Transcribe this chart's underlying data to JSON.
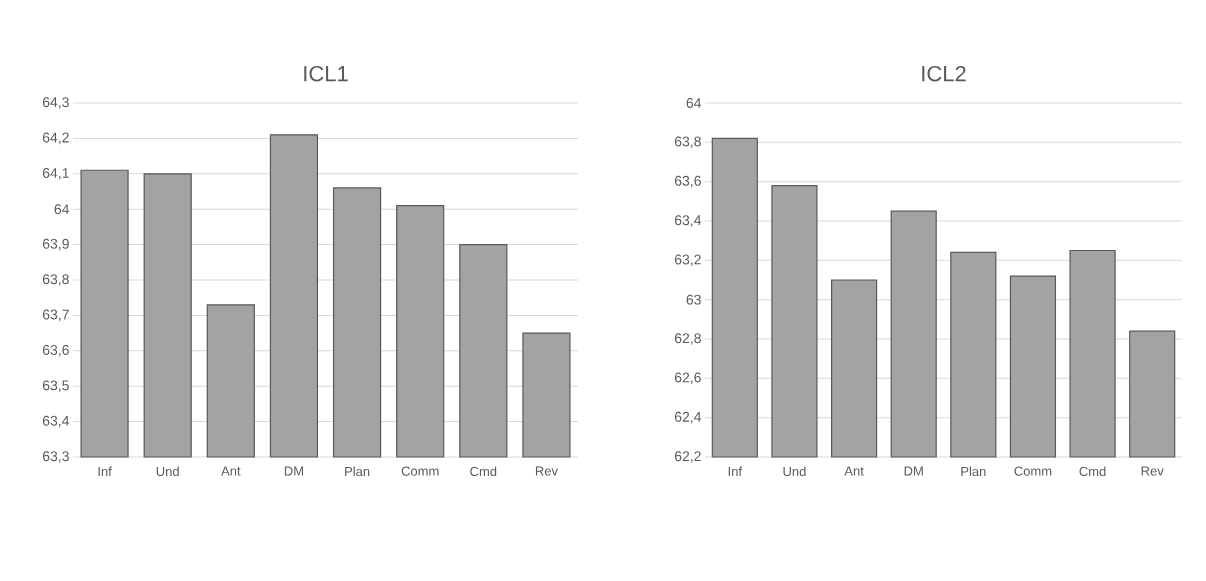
{
  "chart_data": [
    {
      "type": "bar",
      "title": "ICL1",
      "categories": [
        "Inf",
        "Und",
        "Ant",
        "DM",
        "Plan",
        "Comm",
        "Cmd",
        "Rev"
      ],
      "values": [
        64.11,
        64.1,
        63.73,
        64.21,
        64.06,
        64.01,
        63.9,
        63.65
      ],
      "color": "#a3a3a3",
      "ylim": [
        63.3,
        64.3
      ],
      "yticks": [
        {
          "value": 63.3,
          "label": "63,3"
        },
        {
          "value": 63.4,
          "label": "63,4"
        },
        {
          "value": 63.5,
          "label": "63,5"
        },
        {
          "value": 63.6,
          "label": "63,6"
        },
        {
          "value": 63.7,
          "label": "63,7"
        },
        {
          "value": 63.8,
          "label": "63,8"
        },
        {
          "value": 63.9,
          "label": "63,9"
        },
        64,
        {
          "value": 64.1,
          "label": "64,1"
        },
        {
          "value": 64.2,
          "label": "64,2"
        },
        {
          "value": 64.3,
          "label": "64,3"
        }
      ],
      "grid": "y"
    },
    {
      "type": "bar",
      "title": "ICL2",
      "categories": [
        "Inf",
        "Und",
        "Ant",
        "DM",
        "Plan",
        "Comm",
        "Cmd",
        "Rev"
      ],
      "values": [
        63.82,
        63.58,
        63.1,
        63.45,
        63.24,
        63.12,
        63.25,
        62.84
      ],
      "color": "#a3a3a3",
      "ylim": [
        62.2,
        64
      ],
      "yticks": [
        {
          "value": 62.2,
          "label": "62,2"
        },
        {
          "value": 62.4,
          "label": "62,4"
        },
        {
          "value": 62.6,
          "label": "62,6"
        },
        {
          "value": 62.8,
          "label": "62,8"
        },
        63,
        {
          "value": 63.2,
          "label": "63,2"
        },
        {
          "value": 63.4,
          "label": "63,4"
        },
        {
          "value": 63.6,
          "label": "63,6"
        },
        {
          "value": 63.8,
          "label": "63,8"
        },
        64
      ],
      "grid": "y"
    }
  ]
}
